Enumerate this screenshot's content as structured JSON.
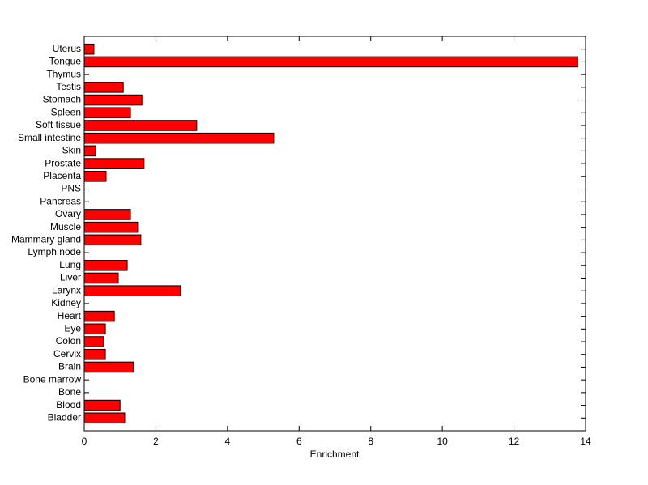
{
  "chart_data": {
    "type": "barh",
    "xlabel": "Enrichment",
    "categories": [
      "Bladder",
      "Blood",
      "Bone",
      "Bone marrow",
      "Brain",
      "Cervix",
      "Colon",
      "Eye",
      "Heart",
      "Kidney",
      "Larynx",
      "Liver",
      "Lung",
      "Lymph node",
      "Mammary gland",
      "Muscle",
      "Ovary",
      "Pancreas",
      "PNS",
      "Placenta",
      "Prostate",
      "Skin",
      "Small intestine",
      "Soft tissue",
      "Spleen",
      "Stomach",
      "Testis",
      "Thymus",
      "Tongue",
      "Uterus"
    ],
    "values": [
      1.13,
      1.0,
      0,
      0,
      1.38,
      0.59,
      0.54,
      0.59,
      0.84,
      0,
      2.69,
      0.95,
      1.2,
      0,
      1.58,
      1.49,
      1.29,
      0,
      0,
      0.61,
      1.67,
      0.32,
      5.29,
      3.14,
      1.29,
      1.61,
      1.09,
      0,
      13.78,
      0.27
    ],
    "color": "#ff0000",
    "xlim": [
      0,
      14
    ],
    "xticks": [
      0,
      2,
      4,
      6,
      8,
      10,
      12,
      14
    ]
  }
}
